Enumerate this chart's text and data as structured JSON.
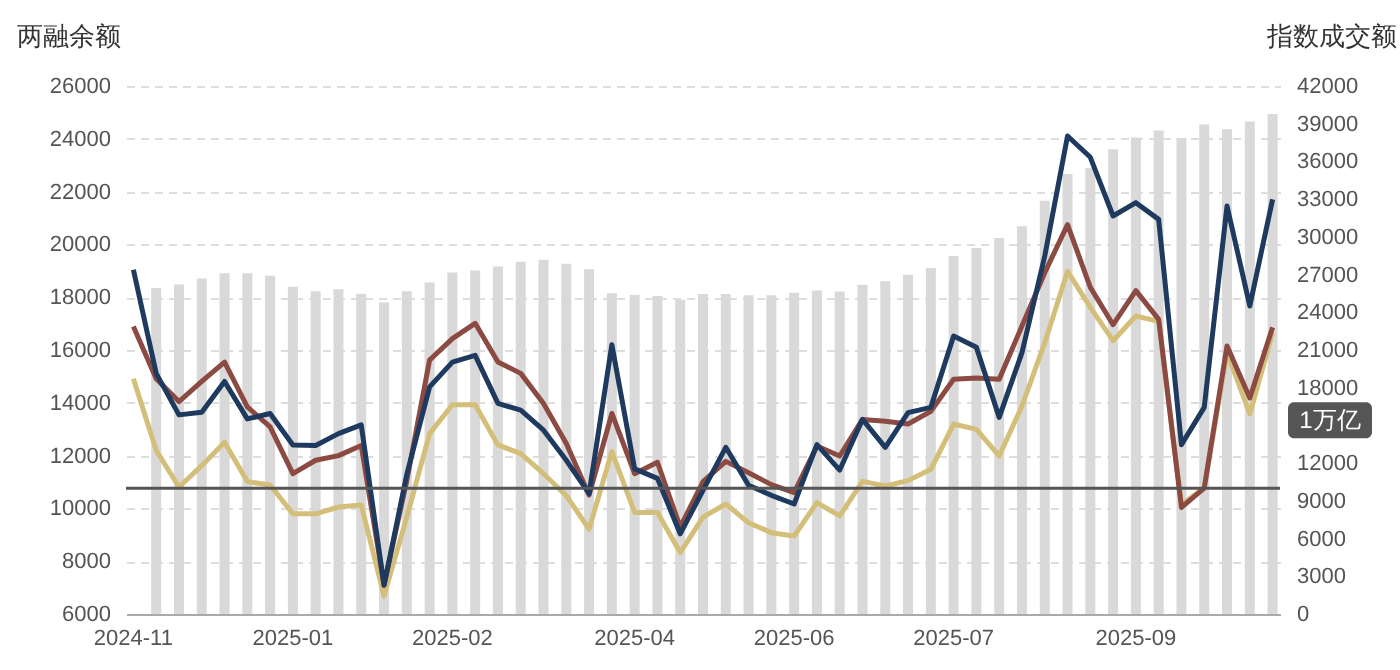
{
  "chart_data": {
    "type": "bar",
    "ylabel": "两融余额",
    "y2label": "指数成交额",
    "categories": [
      "2024-11",
      null,
      null,
      null,
      null,
      null,
      null,
      "2025-01",
      null,
      null,
      null,
      null,
      null,
      null,
      "2025-02",
      null,
      null,
      null,
      null,
      null,
      null,
      null,
      "2025-04",
      null,
      null,
      null,
      null,
      null,
      null,
      "2025-06",
      null,
      null,
      null,
      null,
      null,
      null,
      "2025-07",
      null,
      null,
      null,
      null,
      null,
      null,
      null,
      "2025-09",
      null,
      null,
      null,
      null,
      null,
      null
    ],
    "ylim": [
      6000,
      26000
    ],
    "yticks": [
      6000,
      8000,
      10000,
      12000,
      14000,
      16000,
      18000,
      20000,
      22000,
      24000,
      26000
    ],
    "y2lim": [
      0,
      42000
    ],
    "y2ticks": [
      0,
      3000,
      6000,
      9000,
      12000,
      18000,
      21000,
      24000,
      27000,
      30000,
      33000,
      36000,
      39000,
      42000
    ],
    "grid": "y",
    "series": [
      {
        "axis": "y",
        "color": "#d9d9d9",
        "values": [
          null,
          18350,
          18480,
          18710,
          18910,
          18910,
          18810,
          18400,
          18230,
          18300,
          18130,
          17800,
          18230,
          18560,
          18940,
          19010,
          19160,
          19340,
          19420,
          19270,
          19060,
          18150,
          18080,
          18050,
          17900,
          18120,
          18120,
          18070,
          18070,
          18170,
          18250,
          18220,
          18470,
          18600,
          18850,
          19110,
          19560,
          19860,
          20240,
          20690,
          21650,
          22670,
          22890,
          23600,
          24050,
          24310,
          24030,
          24540,
          24360,
          24660,
          24940
        ]
      },
      {
        "type": "line",
        "axis": "y2",
        "color": "#d4bf7a",
        "values": [
          18710,
          13020,
          10100,
          11800,
          13660,
          10530,
          10260,
          7970,
          7970,
          8510,
          8670,
          1440,
          7710,
          14350,
          16640,
          16640,
          13450,
          12760,
          11160,
          9410,
          6750,
          12920,
          8080,
          8080,
          4890,
          7710,
          8750,
          7260,
          6470,
          6200,
          8860,
          7800,
          10550,
          10180,
          10610,
          11510,
          15110,
          14690,
          12570,
          16540,
          21580,
          27260,
          24390,
          21740,
          23700,
          23280,
          8700,
          10020,
          20790,
          15910,
          22380
        ]
      },
      {
        "type": "line",
        "axis": "y2",
        "color": "#8b4a42",
        "values": [
          22860,
          18710,
          16900,
          18500,
          20040,
          16480,
          14880,
          11160,
          12230,
          12600,
          13400,
          2290,
          10630,
          20200,
          21900,
          23120,
          20040,
          19140,
          16750,
          13560,
          9460,
          15950,
          11160,
          12070,
          6910,
          10530,
          12140,
          11240,
          10290,
          9650,
          13360,
          12570,
          15480,
          15330,
          15110,
          16120,
          18670,
          18770,
          18670,
          22910,
          27150,
          30970,
          25980,
          23010,
          25720,
          23440,
          8480,
          10020,
          21320,
          17180,
          22800
        ]
      },
      {
        "type": "line",
        "axis": "y2",
        "color": "#1f3a5f",
        "values": [
          27380,
          19140,
          15840,
          16050,
          18500,
          15520,
          15950,
          13450,
          13400,
          14350,
          15040,
          2290,
          11110,
          18070,
          20040,
          20570,
          16750,
          16210,
          14620,
          12230,
          9570,
          21420,
          11540,
          10790,
          6380,
          9830,
          13260,
          10240,
          9440,
          8750,
          13470,
          11450,
          15480,
          13260,
          16020,
          16440,
          22110,
          21210,
          15640,
          20790,
          28480,
          38020,
          36330,
          31660,
          32720,
          31390,
          13470,
          16440,
          32450,
          24500,
          32980
        ]
      }
    ],
    "ref_lines": [
      {
        "axis": "y2",
        "value": 10000,
        "label": "1万亿",
        "color": "#555555"
      }
    ]
  }
}
